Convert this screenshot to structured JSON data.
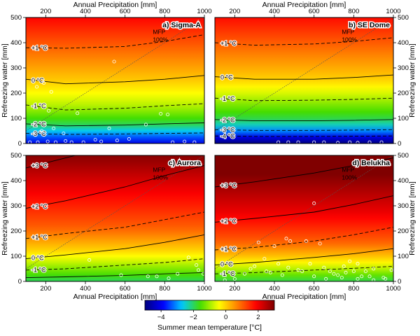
{
  "chart_data": [
    {
      "type": "heatmap",
      "panel_label": "a) Sigma-A",
      "x_range": [
        100,
        1000
      ],
      "y_range": [
        0,
        500
      ],
      "top_axis": {
        "label": "Annual Precipitation [mm]",
        "ticks": [
          200,
          400,
          600,
          800,
          1000
        ]
      },
      "left_axis": {
        "label": "Refreezing water [mm]",
        "ticks": [
          0,
          100,
          200,
          300,
          400,
          500
        ]
      },
      "contours": [
        {
          "label": "+1 °C",
          "style": "dashed",
          "points": [
            [
              100,
              380
            ],
            [
              300,
              378
            ],
            [
              600,
              385
            ],
            [
              800,
              405
            ],
            [
              1000,
              432
            ]
          ]
        },
        {
          "label": "0 °C",
          "style": "solid",
          "points": [
            [
              100,
              255
            ],
            [
              300,
              237
            ],
            [
              600,
              245
            ],
            [
              800,
              255
            ],
            [
              1000,
              270
            ]
          ]
        },
        {
          "label": "-1 °C",
          "style": "dashed",
          "points": [
            [
              100,
              153
            ],
            [
              300,
              133
            ],
            [
              600,
              140
            ],
            [
              800,
              150
            ],
            [
              1000,
              158
            ]
          ]
        },
        {
          "label": "-2 °C",
          "style": "solid",
          "points": [
            [
              100,
              78
            ],
            [
              300,
              70
            ],
            [
              600,
              73
            ],
            [
              800,
              78
            ],
            [
              1000,
              82
            ]
          ]
        },
        {
          "label": "-3 °C",
          "style": "dashed",
          "points": [
            [
              100,
              40
            ],
            [
              300,
              36
            ],
            [
              600,
              38
            ],
            [
              800,
              40
            ],
            [
              1000,
              42
            ]
          ]
        }
      ],
      "mfp_line": {
        "label": "MFP 100%",
        "points": [
          [
            100,
            50
          ],
          [
            1000,
            500
          ]
        ]
      },
      "points": [
        [
          155,
          225
        ],
        [
          190,
          240
        ],
        [
          228,
          205
        ],
        [
          215,
          130
        ],
        [
          240,
          60
        ],
        [
          180,
          50
        ],
        [
          290,
          40
        ],
        [
          360,
          120
        ],
        [
          545,
          325
        ],
        [
          520,
          60
        ],
        [
          560,
          12
        ],
        [
          620,
          18
        ],
        [
          705,
          75
        ],
        [
          780,
          118
        ],
        [
          815,
          115
        ],
        [
          840,
          5
        ],
        [
          900,
          8
        ],
        [
          950,
          5
        ],
        [
          120,
          5
        ],
        [
          160,
          5
        ],
        [
          210,
          8
        ],
        [
          250,
          5
        ],
        [
          300,
          10
        ],
        [
          330,
          5
        ],
        [
          390,
          5
        ],
        [
          450,
          15
        ],
        [
          480,
          8
        ]
      ]
    },
    {
      "type": "heatmap",
      "panel_label": "b) SE Dome",
      "x_range": [
        100,
        1000
      ],
      "y_range": [
        0,
        500
      ],
      "top_axis": {
        "label": "Annual Precipitation [mm]",
        "ticks": [
          200,
          400,
          600,
          800,
          1000
        ]
      },
      "right_axis": {
        "label": "Refreezing water [mm]",
        "ticks": [
          0,
          100,
          200,
          300,
          400,
          500
        ]
      },
      "contours": [
        {
          "label": "+1 °C",
          "style": "dashed",
          "points": [
            [
              100,
              400
            ],
            [
              300,
              390
            ],
            [
              600,
              395
            ],
            [
              800,
              405
            ],
            [
              1000,
              420
            ]
          ]
        },
        {
          "label": "0 °C",
          "style": "solid",
          "points": [
            [
              100,
              265
            ],
            [
              300,
              255
            ],
            [
              600,
              255
            ],
            [
              800,
              262
            ],
            [
              1000,
              272
            ]
          ]
        },
        {
          "label": "-1 °C",
          "style": "dashed",
          "points": [
            [
              100,
              180
            ],
            [
              300,
              170
            ],
            [
              600,
              172
            ],
            [
              800,
              175
            ],
            [
              1000,
              180
            ]
          ]
        },
        {
          "label": "-2 °C",
          "style": "solid",
          "points": [
            [
              100,
              95
            ],
            [
              300,
              90
            ],
            [
              600,
              90
            ],
            [
              800,
              92
            ],
            [
              1000,
              95
            ]
          ]
        },
        {
          "label": "-3 °C",
          "style": "dashed",
          "points": [
            [
              100,
              55
            ],
            [
              300,
              52
            ],
            [
              600,
              52
            ],
            [
              800,
              53
            ],
            [
              1000,
              55
            ]
          ]
        },
        {
          "label": "-4 °C",
          "style": "dashed",
          "points": [
            [
              100,
              30
            ],
            [
              300,
              28
            ],
            [
              600,
              28
            ],
            [
              800,
              29
            ],
            [
              1000,
              30
            ]
          ]
        }
      ],
      "mfp_line": {
        "label": "MFP 100%",
        "points": [
          [
            100,
            50
          ],
          [
            1000,
            500
          ]
        ]
      },
      "points": [
        [
          420,
          5
        ],
        [
          470,
          5
        ],
        [
          520,
          5
        ],
        [
          600,
          5
        ],
        [
          650,
          5
        ],
        [
          720,
          3
        ],
        [
          780,
          5
        ],
        [
          820,
          3
        ],
        [
          880,
          5
        ],
        [
          940,
          5
        ]
      ]
    },
    {
      "type": "heatmap",
      "panel_label": "c) Aurora",
      "x_range": [
        100,
        1000
      ],
      "y_range": [
        0,
        500
      ],
      "bottom_axis": {
        "label": "Annual Precipitation [mm]",
        "ticks": [
          200,
          400,
          600,
          800,
          1000
        ]
      },
      "left_axis": {
        "label": "Refreezing water [mm]",
        "ticks": [
          0,
          100,
          200,
          300,
          400,
          500
        ]
      },
      "contours": [
        {
          "label": "+3 °C",
          "style": "solid",
          "points": [
            [
              100,
              450
            ],
            [
              300,
              490
            ],
            [
              400,
              510
            ]
          ]
        },
        {
          "label": "+2 °C",
          "style": "solid",
          "points": [
            [
              100,
              290
            ],
            [
              300,
              320
            ],
            [
              600,
              375
            ],
            [
              800,
              420
            ],
            [
              1000,
              460
            ]
          ]
        },
        {
          "label": "+1 °C",
          "style": "dashed",
          "points": [
            [
              100,
              170
            ],
            [
              300,
              190
            ],
            [
              600,
              215
            ],
            [
              800,
              245
            ],
            [
              1000,
              275
            ]
          ]
        },
        {
          "label": "0 °C",
          "style": "solid",
          "points": [
            [
              100,
              90
            ],
            [
              300,
              105
            ],
            [
              600,
              130
            ],
            [
              800,
              155
            ],
            [
              1000,
              185
            ]
          ]
        },
        {
          "label": "-1 °C",
          "style": "dashed",
          "points": [
            [
              100,
              45
            ],
            [
              300,
              50
            ],
            [
              600,
              65
            ],
            [
              800,
              75
            ],
            [
              1000,
              90
            ]
          ]
        },
        {
          "label": "",
          "style": "solid",
          "points": [
            [
              100,
              15
            ],
            [
              300,
              18
            ],
            [
              600,
              24
            ],
            [
              800,
              30
            ],
            [
              1000,
              35
            ]
          ]
        }
      ],
      "mfp_line": {
        "label": "MFP 100%",
        "points": [
          [
            100,
            50
          ],
          [
            1000,
            500
          ]
        ]
      },
      "points": [
        [
          420,
          85
        ],
        [
          580,
          25
        ],
        [
          715,
          20
        ],
        [
          760,
          20
        ],
        [
          820,
          12
        ],
        [
          865,
          30
        ],
        [
          920,
          95
        ],
        [
          960,
          65
        ],
        [
          970,
          45
        ],
        [
          995,
          30
        ]
      ]
    },
    {
      "type": "heatmap",
      "panel_label": "d) Belukha",
      "x_range": [
        100,
        1000
      ],
      "y_range": [
        0,
        500
      ],
      "bottom_axis": {
        "label": "Annual Precipitation [mm]",
        "ticks": [
          200,
          400,
          600,
          800,
          1000
        ]
      },
      "right_axis": {
        "label": "Refreezing water [mm]",
        "ticks": [
          0,
          100,
          200,
          300,
          400,
          500
        ]
      },
      "contours": [
        {
          "label": "+3 °C",
          "style": "solid",
          "points": [
            [
              100,
              375
            ],
            [
              300,
              395
            ],
            [
              600,
              430
            ],
            [
              800,
              460
            ],
            [
              1000,
              490
            ]
          ]
        },
        {
          "label": "+2 °C",
          "style": "solid",
          "points": [
            [
              100,
              235
            ],
            [
              300,
              250
            ],
            [
              600,
              275
            ],
            [
              800,
              305
            ],
            [
              1000,
              340
            ]
          ]
        },
        {
          "label": "+1 °C",
          "style": "dashed",
          "points": [
            [
              100,
              125
            ],
            [
              300,
              135
            ],
            [
              600,
              160
            ],
            [
              800,
              185
            ],
            [
              1000,
              215
            ]
          ]
        },
        {
          "label": "0 °C",
          "style": "solid",
          "points": [
            [
              100,
              65
            ],
            [
              300,
              75
            ],
            [
              600,
              95
            ],
            [
              800,
              110
            ],
            [
              1000,
              130
            ]
          ]
        },
        {
          "label": "-1 °C",
          "style": "dashed",
          "points": [
            [
              100,
              30
            ],
            [
              300,
              35
            ],
            [
              600,
              45
            ],
            [
              800,
              52
            ],
            [
              1000,
              60
            ]
          ]
        }
      ],
      "mfp_line": {
        "label": "MFP 100%",
        "points": [
          [
            100,
            50
          ],
          [
            1000,
            500
          ]
        ]
      },
      "points": [
        [
          320,
          155
        ],
        [
          350,
          90
        ],
        [
          400,
          140
        ],
        [
          460,
          170
        ],
        [
          480,
          160
        ],
        [
          560,
          160
        ],
        [
          600,
          310
        ],
        [
          630,
          150
        ],
        [
          700,
          30
        ],
        [
          750,
          60
        ],
        [
          780,
          80
        ],
        [
          820,
          70
        ],
        [
          860,
          40
        ],
        [
          880,
          20
        ],
        [
          900,
          50
        ],
        [
          950,
          15
        ],
        [
          990,
          45
        ],
        [
          420,
          70
        ],
        [
          470,
          55
        ],
        [
          520,
          45
        ],
        [
          540,
          40
        ],
        [
          580,
          70
        ],
        [
          650,
          55
        ],
        [
          680,
          40
        ],
        [
          720,
          25
        ],
        [
          760,
          35
        ],
        [
          800,
          40
        ],
        [
          840,
          20
        ],
        [
          250,
          30
        ],
        [
          280,
          50
        ],
        [
          300,
          60
        ],
        [
          360,
          40
        ],
        [
          380,
          35
        ],
        [
          440,
          25
        ],
        [
          600,
          20
        ],
        [
          660,
          10
        ],
        [
          740,
          15
        ],
        [
          820,
          10
        ],
        [
          900,
          5
        ],
        [
          960,
          10
        ],
        [
          200,
          10
        ],
        [
          150,
          5
        ]
      ]
    }
  ],
  "colorbar": {
    "label": "Summer mean temperature [°C]",
    "range": [
      -5,
      3
    ],
    "ticks": [
      -4,
      -2,
      0,
      2
    ],
    "tick_labels": [
      "−4",
      "−2",
      "0",
      "2"
    ]
  },
  "colors": {
    "scale": [
      "#000080",
      "#0000ff",
      "#00c8ff",
      "#44dd00",
      "#ffff00",
      "#ff8000",
      "#ff0000",
      "#800000"
    ]
  }
}
